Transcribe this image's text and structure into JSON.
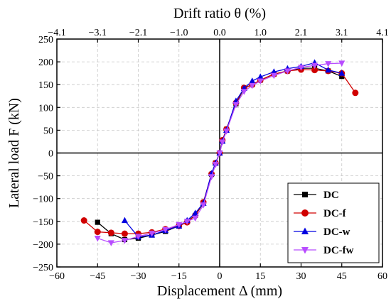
{
  "chart_data": {
    "type": "line",
    "title": "",
    "xlabel": "Displacement Δ (mm)",
    "ylabel": "Lateral load F (kN)",
    "top_xlabel": "Drift ratio θ (%)",
    "xlim": [
      -60,
      60
    ],
    "ylim": [
      -250,
      250
    ],
    "x_ticks": [
      "−60",
      "−45",
      "−30",
      "−15",
      "0",
      "15",
      "30",
      "45",
      "60"
    ],
    "y_ticks": [
      "−250",
      "−200",
      "−150",
      "−100",
      "−50",
      "0",
      "50",
      "100",
      "150",
      "200",
      "250"
    ],
    "top_ticks": [
      "−4.1",
      "−3.1",
      "−2.1",
      "−1.0",
      "0.0",
      "1.0",
      "2.1",
      "3.1",
      "4.1"
    ],
    "grid": true,
    "legend_position": "bottom-right",
    "series": [
      {
        "name": "DC",
        "color": "#000000",
        "marker": "square",
        "points": [
          [
            -45,
            -152
          ],
          [
            -40,
            -177
          ],
          [
            -35,
            -190
          ],
          [
            -30,
            -187
          ],
          [
            -25,
            -180
          ],
          [
            -20,
            -172
          ],
          [
            -15,
            -160
          ],
          [
            -12,
            -150
          ],
          [
            -9,
            -137
          ],
          [
            -6,
            -110
          ],
          [
            -3,
            -47
          ],
          [
            -1.5,
            -22
          ],
          [
            0,
            0
          ],
          [
            1,
            26
          ],
          [
            2.5,
            52
          ],
          [
            6,
            108
          ],
          [
            9,
            142
          ],
          [
            12,
            150
          ],
          [
            15,
            160
          ],
          [
            20,
            173
          ],
          [
            25,
            180
          ],
          [
            30,
            186
          ],
          [
            35,
            186
          ],
          [
            40,
            180
          ],
          [
            45,
            168
          ]
        ]
      },
      {
        "name": "DC-f",
        "color": "#d00000",
        "marker": "circle",
        "points": [
          [
            -50,
            -148
          ],
          [
            -45,
            -173
          ],
          [
            -40,
            -175
          ],
          [
            -35,
            -177
          ],
          [
            -30,
            -177
          ],
          [
            -25,
            -174
          ],
          [
            -20,
            -167
          ],
          [
            -15,
            -160
          ],
          [
            -12,
            -152
          ],
          [
            -9,
            -137
          ],
          [
            -6,
            -108
          ],
          [
            -3,
            -46
          ],
          [
            -1.5,
            -22
          ],
          [
            0,
            0
          ],
          [
            1,
            28
          ],
          [
            2.5,
            52
          ],
          [
            6,
            110
          ],
          [
            9,
            143
          ],
          [
            12,
            150
          ],
          [
            15,
            160
          ],
          [
            20,
            173
          ],
          [
            25,
            180
          ],
          [
            30,
            183
          ],
          [
            35,
            182
          ],
          [
            40,
            180
          ],
          [
            45,
            175
          ],
          [
            50,
            132
          ]
        ]
      },
      {
        "name": "DC-w",
        "color": "#0000e0",
        "marker": "triangle-up",
        "points": [
          [
            -35,
            -148
          ],
          [
            -30,
            -184
          ],
          [
            -25,
            -180
          ],
          [
            -20,
            -170
          ],
          [
            -15,
            -160
          ],
          [
            -12,
            -148
          ],
          [
            -9,
            -132
          ],
          [
            -6,
            -110
          ],
          [
            -3,
            -45
          ],
          [
            -1.5,
            -22
          ],
          [
            0,
            0
          ],
          [
            1,
            26
          ],
          [
            2.5,
            50
          ],
          [
            6,
            114
          ],
          [
            9,
            142
          ],
          [
            12,
            158
          ],
          [
            15,
            167
          ],
          [
            20,
            178
          ],
          [
            25,
            185
          ],
          [
            30,
            190
          ],
          [
            35,
            198
          ],
          [
            40,
            182
          ],
          [
            45,
            175
          ]
        ]
      },
      {
        "name": "DC-fw",
        "color": "#b84cff",
        "marker": "triangle-down",
        "points": [
          [
            -45,
            -187
          ],
          [
            -40,
            -197
          ],
          [
            -35,
            -192
          ],
          [
            -30,
            -183
          ],
          [
            -25,
            -176
          ],
          [
            -20,
            -168
          ],
          [
            -15,
            -157
          ],
          [
            -12,
            -150
          ],
          [
            -9,
            -143
          ],
          [
            -6,
            -114
          ],
          [
            -3,
            -52
          ],
          [
            -1.5,
            -25
          ],
          [
            0,
            0
          ],
          [
            1,
            24
          ],
          [
            2.5,
            48
          ],
          [
            6,
            106
          ],
          [
            9,
            135
          ],
          [
            12,
            148
          ],
          [
            15,
            158
          ],
          [
            20,
            170
          ],
          [
            25,
            180
          ],
          [
            30,
            188
          ],
          [
            35,
            192
          ],
          [
            40,
            196
          ],
          [
            45,
            197
          ]
        ]
      }
    ]
  }
}
